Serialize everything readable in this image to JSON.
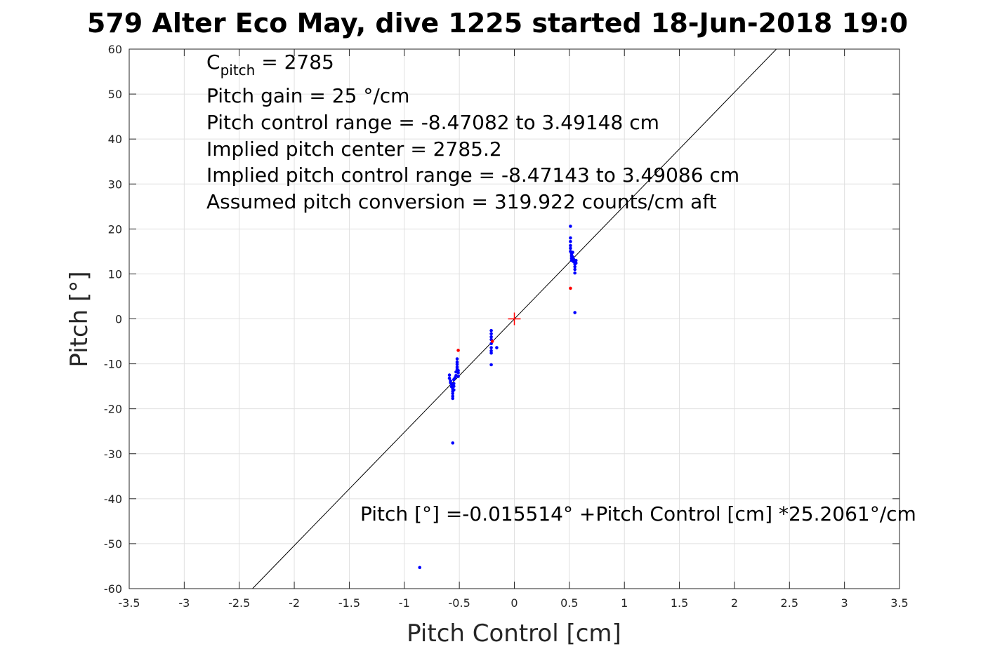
{
  "chart_data": {
    "type": "scatter",
    "title": "579 Alter Eco May, dive 1225 started 18-Jun-2018 19:0",
    "xlabel": "Pitch Control [cm]",
    "ylabel": "Pitch [°]",
    "xlim": [
      -3.5,
      3.5
    ],
    "ylim": [
      -60,
      60
    ],
    "xticks": [
      -3.5,
      -3,
      -2.5,
      -2,
      -1.5,
      -1,
      -0.5,
      0,
      0.5,
      1,
      1.5,
      2,
      2.5,
      3,
      3.5
    ],
    "yticks": [
      -60,
      -50,
      -40,
      -30,
      -20,
      -10,
      0,
      10,
      20,
      30,
      40,
      50,
      60
    ],
    "xtick_labels": [
      "-3.5",
      "-3",
      "-2.5",
      "-2",
      "-1.5",
      "-1",
      "-0.5",
      "0",
      "0.5",
      "1",
      "1.5",
      "2",
      "2.5",
      "3",
      "3.5"
    ],
    "ytick_labels": [
      "-60",
      "-50",
      "-40",
      "-30",
      "-20",
      "-10",
      "0",
      "10",
      "20",
      "30",
      "40",
      "50",
      "60"
    ],
    "grid": true,
    "fit_line": {
      "intercept": -0.015514,
      "slope": 25.2061
    },
    "center_marker": {
      "x": 0,
      "y": 0,
      "color": "#ff0000"
    },
    "annotations": {
      "c_pitch_base": "C",
      "c_pitch_sub": "pitch",
      "c_pitch_value": " = 2785",
      "lines": [
        "Pitch gain = 25 °/cm",
        "Pitch control range = -8.47082 to 3.49148 cm",
        "Implied pitch center = 2785.2",
        "Implied pitch control range = -8.47143 to 3.49086 cm",
        "Assumed pitch conversion = 319.922 counts/cm aft"
      ],
      "fit_equation": "Pitch [°] =-0.015514° +Pitch Control [cm] *25.2061°/cm"
    },
    "series": [
      {
        "color": "#0000ff",
        "points": [
          [
            -0.86,
            -55.3
          ],
          [
            -0.56,
            -27.6
          ],
          [
            -0.59,
            -12.5
          ],
          [
            -0.59,
            -13.2
          ],
          [
            -0.58,
            -13.8
          ],
          [
            -0.58,
            -14.2
          ],
          [
            -0.57,
            -14.6
          ],
          [
            -0.57,
            -15.1
          ],
          [
            -0.56,
            -15.6
          ],
          [
            -0.56,
            -16.1
          ],
          [
            -0.56,
            -16.6
          ],
          [
            -0.56,
            -17.2
          ],
          [
            -0.56,
            -17.7
          ],
          [
            -0.55,
            -13.5
          ],
          [
            -0.55,
            -14.4
          ],
          [
            -0.55,
            -15.0
          ],
          [
            -0.55,
            -15.8
          ],
          [
            -0.54,
            -13.1
          ],
          [
            -0.53,
            -12.6
          ],
          [
            -0.53,
            -11.8
          ],
          [
            -0.52,
            -11.2
          ],
          [
            -0.52,
            -10.7
          ],
          [
            -0.52,
            -10.1
          ],
          [
            -0.52,
            -9.6
          ],
          [
            -0.52,
            -8.9
          ],
          [
            -0.51,
            -12.0
          ],
          [
            -0.51,
            -12.8
          ],
          [
            -0.51,
            -11.5
          ],
          [
            -0.21,
            -2.6
          ],
          [
            -0.21,
            -3.3
          ],
          [
            -0.21,
            -4.0
          ],
          [
            -0.21,
            -4.6
          ],
          [
            -0.21,
            -5.5
          ],
          [
            -0.21,
            -6.4
          ],
          [
            -0.21,
            -7.1
          ],
          [
            -0.21,
            -7.6
          ],
          [
            -0.21,
            -10.2
          ],
          [
            -0.16,
            -6.4
          ],
          [
            0.51,
            20.6
          ],
          [
            0.51,
            18.0
          ],
          [
            0.51,
            17.2
          ],
          [
            0.51,
            16.3
          ],
          [
            0.51,
            15.7
          ],
          [
            0.51,
            15.0
          ],
          [
            0.52,
            14.5
          ],
          [
            0.52,
            14.0
          ],
          [
            0.52,
            13.5
          ],
          [
            0.52,
            13.0
          ],
          [
            0.53,
            14.8
          ],
          [
            0.53,
            13.8
          ],
          [
            0.54,
            13.2
          ],
          [
            0.54,
            12.7
          ],
          [
            0.55,
            12.2
          ],
          [
            0.55,
            11.6
          ],
          [
            0.55,
            11.0
          ],
          [
            0.55,
            10.2
          ],
          [
            0.56,
            13.0
          ],
          [
            0.56,
            12.4
          ],
          [
            0.55,
            1.4
          ]
        ]
      },
      {
        "color": "#ff0000",
        "points": [
          [
            -0.51,
            -7.0
          ],
          [
            0.51,
            6.8
          ],
          [
            -0.2,
            -5.0
          ]
        ]
      }
    ]
  }
}
